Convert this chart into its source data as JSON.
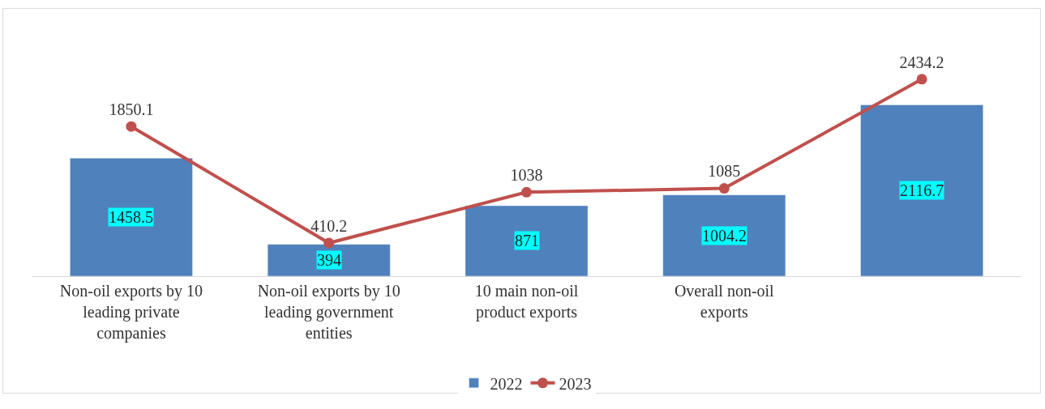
{
  "chart_data": {
    "type": "bar",
    "categories": [
      "Non-oil exports by 10 leading private companies",
      "Non-oil exports by 10 leading government entities",
      "10 main non-oil product exports",
      "Overall non-oil exports",
      null
    ],
    "series": [
      {
        "name": "2022",
        "color": "#4f81bd",
        "values": [
          1458.5,
          394,
          871,
          1004.2,
          2116.7
        ]
      },
      {
        "name": "2023",
        "type": "line",
        "color": "#c0504d",
        "values": [
          1850.1,
          410.2,
          1038,
          1085,
          2434.2
        ]
      }
    ],
    "tick_labels": "x",
    "data_labels": true,
    "legend": "bottom",
    "marker": "circle",
    "line_style": "solid"
  }
}
